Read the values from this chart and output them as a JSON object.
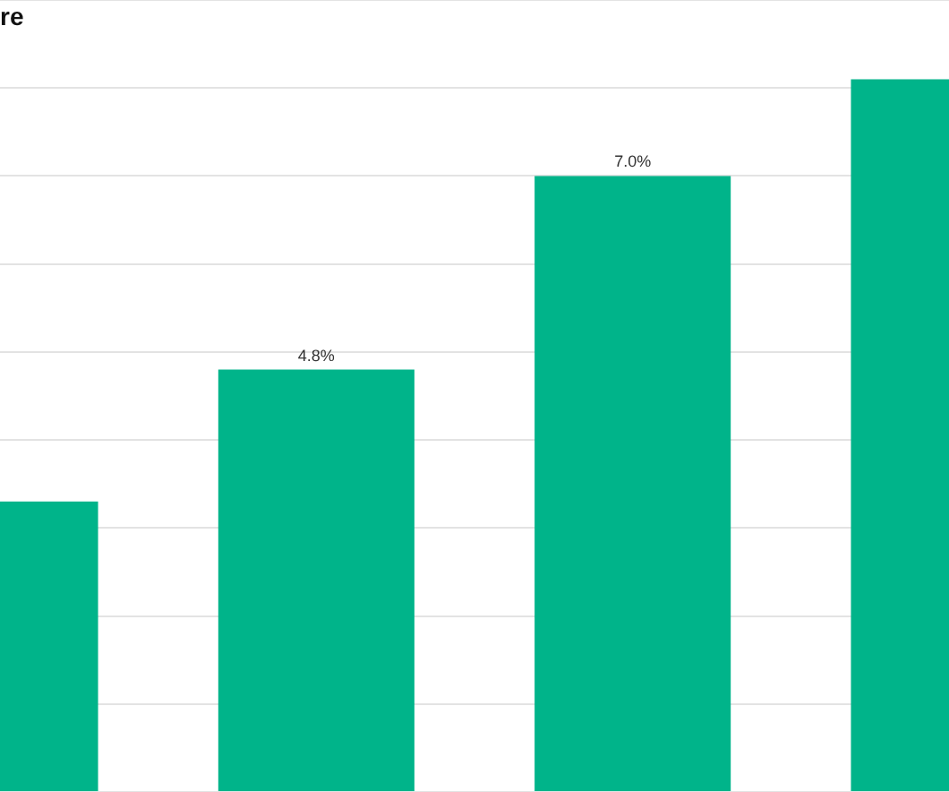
{
  "chart_data": {
    "type": "bar",
    "title": "re",
    "categories": [
      null,
      null,
      null,
      null
    ],
    "values": [
      3.3,
      4.8,
      7.0,
      8.1
    ],
    "color": "#00b48a",
    "value_labels": [
      null,
      "4.8%",
      "7.0%",
      null
    ],
    "tick_labels": false,
    "grid": "y",
    "legend": false
  }
}
